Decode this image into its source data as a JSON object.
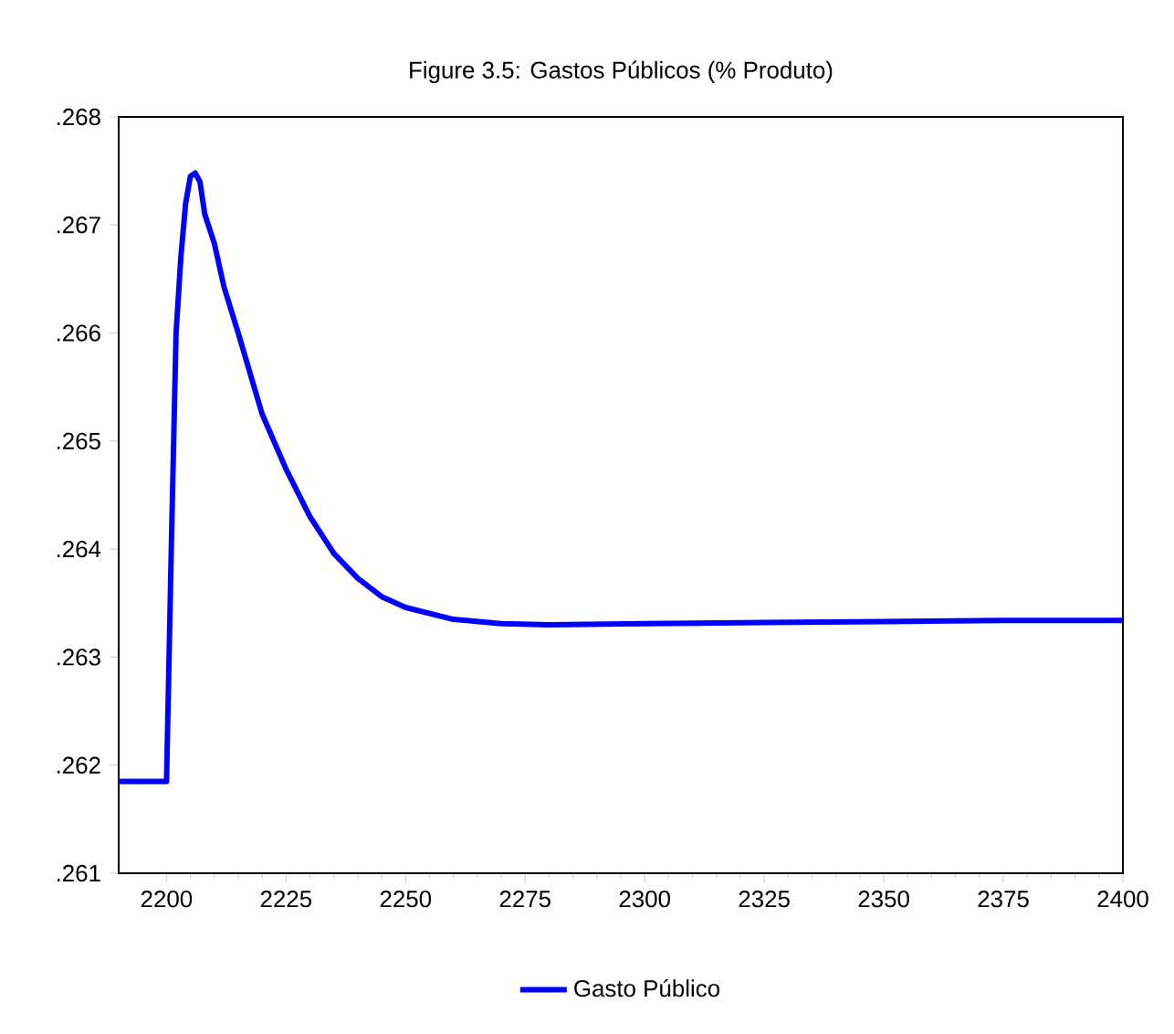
{
  "chart_data": {
    "type": "line",
    "title": "Figure 3.5: Gastos Públicos (% Produto)",
    "x": [
      2190,
      2200,
      2201,
      2202,
      2203,
      2204,
      2205,
      2206,
      2207,
      2208,
      2210,
      2212,
      2215,
      2220,
      2225,
      2230,
      2235,
      2240,
      2245,
      2250,
      2260,
      2270,
      2280,
      2300,
      2325,
      2350,
      2375,
      2400
    ],
    "series": [
      {
        "name": "Gasto Público",
        "color": "#0000ff",
        "values": [
          0.26185,
          0.26185,
          0.264,
          0.266,
          0.2667,
          0.2672,
          0.26745,
          0.26748,
          0.2674,
          0.2671,
          0.26683,
          0.26643,
          0.266,
          0.26525,
          0.26474,
          0.2643,
          0.26396,
          0.26373,
          0.26356,
          0.26346,
          0.26335,
          0.26331,
          0.2633,
          0.26331,
          0.26332,
          0.26333,
          0.26334,
          0.26334
        ]
      }
    ],
    "xlim": [
      2190,
      2400
    ],
    "xticks": [
      2200,
      2225,
      2250,
      2275,
      2300,
      2325,
      2350,
      2375,
      2400
    ],
    "ylim": [
      0.261,
      0.268
    ],
    "yticks": [
      {
        "value": 0.261,
        "label": ".261"
      },
      {
        "value": 0.262,
        "label": ".262"
      },
      {
        "value": 0.263,
        "label": ".263"
      },
      {
        "value": 0.264,
        "label": ".264"
      },
      {
        "value": 0.265,
        "label": ".265"
      },
      {
        "value": 0.266,
        "label": ".266"
      },
      {
        "value": 0.267,
        "label": ".267"
      },
      {
        "value": 0.268,
        "label": ".268"
      }
    ],
    "grid": false,
    "legend": "bottom",
    "marker": "none",
    "line_style": "solid"
  }
}
